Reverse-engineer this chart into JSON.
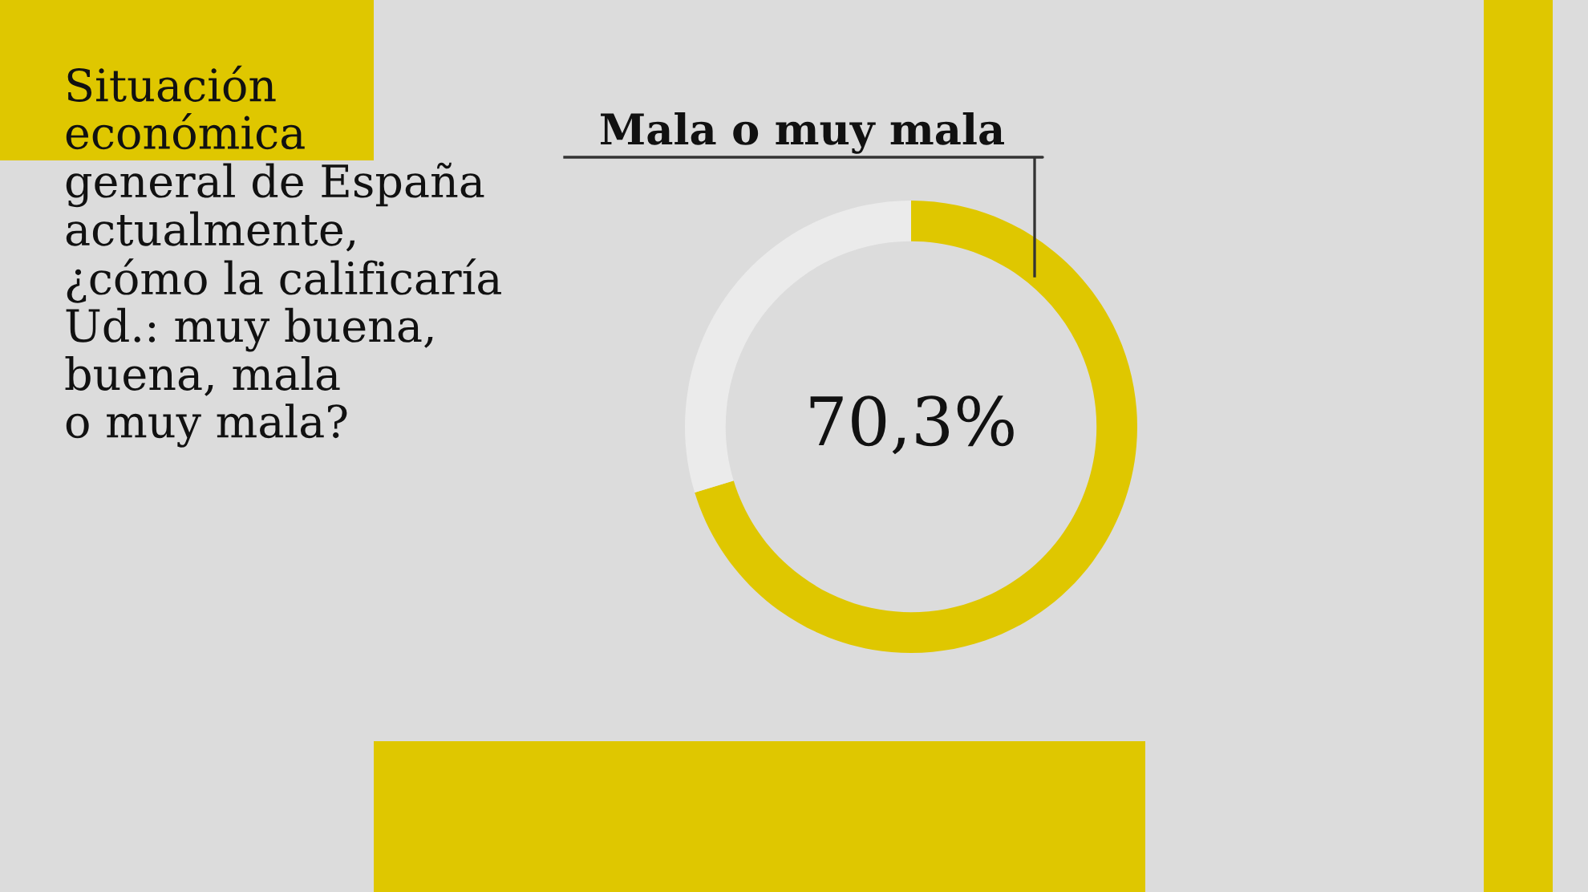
{
  "chart_data": {
    "type": "donut",
    "title": "Situación\neconómica\ngeneral de España\nactualmente,\n¿cómo la calificaría\nUd.: muy buena,\nbuena, mala\no muy mala?",
    "categories": [
      "Mala o muy mala",
      null
    ],
    "values": [
      70.3,
      29.7
    ],
    "colors": [
      "#dfc700",
      "#ebebeb"
    ],
    "value_labels": [
      "70,3%",
      null
    ]
  }
}
